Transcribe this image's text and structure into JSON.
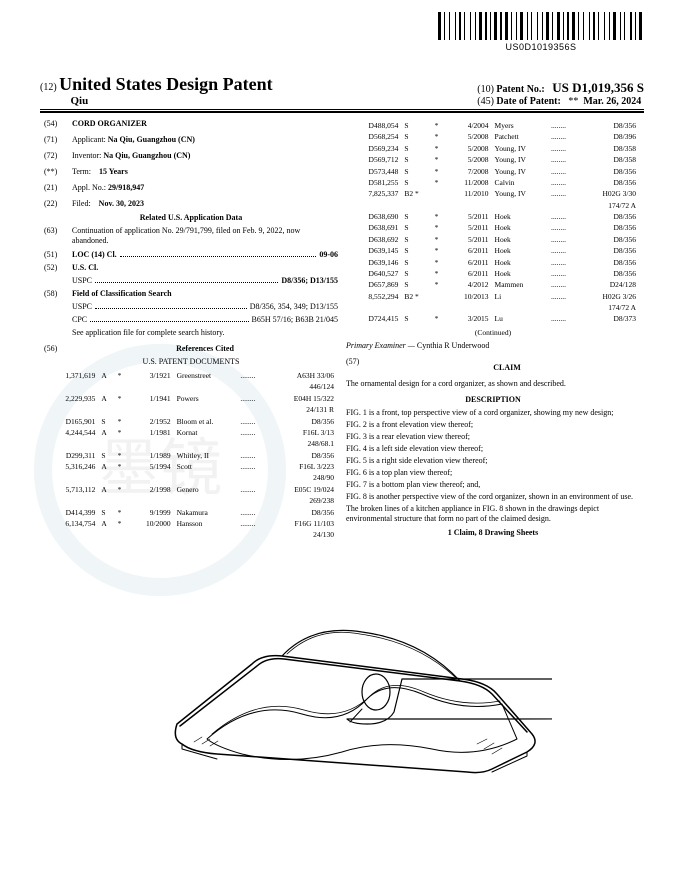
{
  "barcode_text": "US0D1019356S",
  "hdr_code12": "(12)",
  "hdr_title": "United States Design Patent",
  "hdr_name": "Qiu",
  "hdr_code10": "(10)",
  "hdr_pn_label": "Patent No.:",
  "hdr_pn": "US D1,019,356 S",
  "hdr_code45": "(45)",
  "hdr_dop_label": "Date of Patent:",
  "hdr_star": "**",
  "hdr_date": "Mar. 26, 2024",
  "f54c": "(54)",
  "f54l": "CORD ORGANIZER",
  "f71c": "(71)",
  "f71l": "Applicant:",
  "f71v": "Na Qiu, Guangzhou (CN)",
  "f72c": "(72)",
  "f72l": "Inventor:",
  "f72v": "Na Qiu, Guangzhou (CN)",
  "fTTc": "(**)",
  "fTTl": "Term:",
  "fTTv": "15 Years",
  "f21c": "(21)",
  "f21l": "Appl. No.:",
  "f21v": "29/918,947",
  "f22c": "(22)",
  "f22l": "Filed:",
  "f22v": "Nov. 30, 2023",
  "relhdr": "Related U.S. Application Data",
  "f63c": "(63)",
  "f63v": "Continuation of application No. 29/791,799, filed on Feb. 9, 2022, now abandoned.",
  "f51c": "(51)",
  "f51l": "LOC (14) Cl.",
  "f51v": "09-06",
  "f52c": "(52)",
  "f52l": "U.S. Cl.",
  "f52sub": "USPC",
  "f52v": "D8/356; D13/155",
  "f58c": "(58)",
  "f58l": "Field of Classification Search",
  "f58u": "USPC",
  "f58uv": "D8/356, 354, 349; D13/155",
  "f58p": "CPC",
  "f58pv": "B65H 57/16; B63B 21/045",
  "f58note": "See application file for complete search history.",
  "f56c": "(56)",
  "f56l": "References Cited",
  "usdocs": "U.S. PATENT DOCUMENTS",
  "refsL": [
    [
      "1,371,619",
      "A",
      "*",
      "3/1921",
      "Greenstreet",
      "A63H 33/06",
      "446/124"
    ],
    [
      "2,229,935",
      "A",
      "*",
      "1/1941",
      "Powers",
      "E04H 15/322",
      "24/131 R"
    ],
    [
      "D165,901",
      "S",
      "*",
      "2/1952",
      "Bloom et al.",
      "D8/356",
      ""
    ],
    [
      "4,244,544",
      "A",
      "*",
      "1/1981",
      "Kornat",
      "F16L 3/13",
      "248/68.1"
    ],
    [
      "D299,311",
      "S",
      "*",
      "1/1989",
      "Whitley, II",
      "D8/356",
      ""
    ],
    [
      "5,316,246",
      "A",
      "*",
      "5/1994",
      "Scott",
      "F16L 3/223",
      "248/90"
    ],
    [
      "5,713,112",
      "A",
      "*",
      "2/1998",
      "Genero",
      "E05C 19/024",
      "269/238"
    ],
    [
      "D414,399",
      "S",
      "*",
      "9/1999",
      "Nakamura",
      "D8/356",
      ""
    ],
    [
      "6,134,754",
      "A",
      "*",
      "10/2000",
      "Hansson",
      "F16G 11/103",
      "24/130"
    ]
  ],
  "refsR": [
    [
      "D488,054",
      "S",
      "*",
      "4/2004",
      "Myers",
      "D8/356"
    ],
    [
      "D568,254",
      "S",
      "*",
      "5/2008",
      "Patchett",
      "D8/396"
    ],
    [
      "D569,234",
      "S",
      "*",
      "5/2008",
      "Young, IV",
      "D8/358"
    ],
    [
      "D569,712",
      "S",
      "*",
      "5/2008",
      "Young, IV",
      "D8/358"
    ],
    [
      "D573,448",
      "S",
      "*",
      "7/2008",
      "Young, IV",
      "D8/356"
    ],
    [
      "D581,255",
      "S",
      "*",
      "11/2008",
      "Calvin",
      "D8/356"
    ],
    [
      "7,825,337",
      "B2 *",
      "",
      "11/2010",
      "Young, IV",
      "H02G 3/30",
      "174/72 A"
    ],
    [
      "D638,690",
      "S",
      "*",
      "5/2011",
      "Hoek",
      "D8/356"
    ],
    [
      "D638,691",
      "S",
      "*",
      "5/2011",
      "Hoek",
      "D8/356"
    ],
    [
      "D638,692",
      "S",
      "*",
      "5/2011",
      "Hoek",
      "D8/356"
    ],
    [
      "D639,145",
      "S",
      "*",
      "6/2011",
      "Hoek",
      "D8/356"
    ],
    [
      "D639,146",
      "S",
      "*",
      "6/2011",
      "Hoek",
      "D8/356"
    ],
    [
      "D640,527",
      "S",
      "*",
      "6/2011",
      "Hoek",
      "D8/356"
    ],
    [
      "D657,869",
      "S",
      "*",
      "4/2012",
      "Mammen",
      "D24/128"
    ],
    [
      "8,552,294",
      "B2 *",
      "",
      "10/2013",
      "Li",
      "H02G 3/26",
      "174/72 A"
    ],
    [
      "D724,415",
      "S",
      "*",
      "3/2015",
      "Lu",
      "D8/373"
    ]
  ],
  "continued": "(Continued)",
  "examiner_l": "Primary Examiner —",
  "examiner_v": "Cynthia R Underwood",
  "claim_c": "(57)",
  "claim_h": "CLAIM",
  "claim_text": "The ornamental design for a cord organizer, as shown and described.",
  "desc_h": "DESCRIPTION",
  "desc": [
    "FIG. 1 is a front, top perspective view of a cord organizer, showing my new design;",
    "FIG. 2 is a front elevation view thereof;",
    "FIG. 3 is a rear elevation view thereof;",
    "FIG. 4 is a left side elevation view thereof;",
    "FIG. 5 is a right side elevation view thereof;",
    "FIG. 6 is a top plan view thereof;",
    "FIG. 7 is a bottom plan view thereof; and,",
    "FIG. 8 is another perspective view of the cord organizer, shown in an environment of use.",
    "The broken lines of a kitchen appliance in FIG. 8 shown in the drawings depict environmental structure that form no part of the claimed design."
  ],
  "bottom": "1 Claim, 8 Drawing Sheets"
}
